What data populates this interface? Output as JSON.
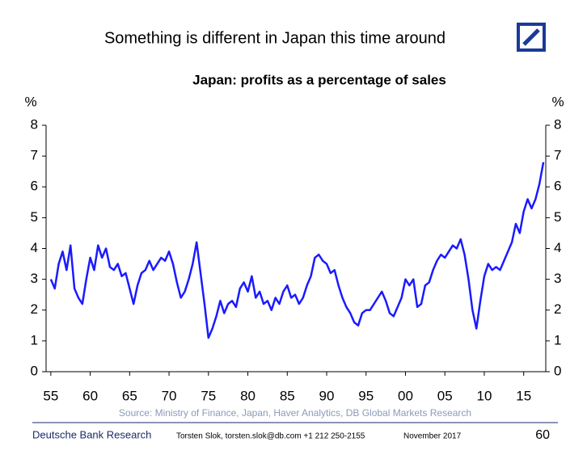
{
  "slide_title": "Something is different in Japan this time around",
  "source": "Source: Ministry of Finance, Japan,  Haver Analytics, DB Global Markets Research",
  "footer": {
    "brand": "Deutsche Bank Research",
    "author": "Torsten Slok, torsten.slok@db.com  +1 212 250-2155",
    "date": "November  2017",
    "page": "60"
  },
  "chart_data": {
    "type": "line",
    "title": "Japan: profits as a percentage of sales",
    "ylabel": "%",
    "y2label": "%",
    "color": "#1a1aff",
    "xlim": [
      1954.4,
      2017.8
    ],
    "xticks": [
      {
        "value": 1955,
        "label": "55"
      },
      {
        "value": 1960,
        "label": "60"
      },
      {
        "value": 1965,
        "label": "65"
      },
      {
        "value": 1970,
        "label": "70"
      },
      {
        "value": 1975,
        "label": "75"
      },
      {
        "value": 1980,
        "label": "80"
      },
      {
        "value": 1985,
        "label": "85"
      },
      {
        "value": 1990,
        "label": "90"
      },
      {
        "value": 1995,
        "label": "95"
      },
      {
        "value": 2000,
        "label": "00"
      },
      {
        "value": 2005,
        "label": "05"
      },
      {
        "value": 2010,
        "label": "10"
      },
      {
        "value": 2015,
        "label": "15"
      }
    ],
    "ylim": [
      0,
      8
    ],
    "yticks": [
      0,
      1,
      2,
      3,
      4,
      5,
      6,
      7,
      8
    ],
    "y2lim": [
      0,
      8
    ],
    "y2ticks": [
      0,
      1,
      2,
      3,
      4,
      5,
      6,
      7,
      8
    ],
    "x": [
      1955,
      1955.5,
      1956,
      1956.5,
      1957,
      1957.5,
      1958,
      1958.5,
      1959,
      1959.5,
      1960,
      1960.5,
      1961,
      1961.5,
      1962,
      1962.5,
      1963,
      1963.5,
      1964,
      1964.5,
      1965,
      1965.5,
      1966,
      1966.5,
      1967,
      1967.5,
      1968,
      1968.5,
      1969,
      1969.5,
      1970,
      1970.5,
      1971,
      1971.5,
      1972,
      1972.5,
      1973,
      1973.5,
      1974,
      1974.5,
      1975,
      1975.5,
      1976,
      1976.5,
      1977,
      1977.5,
      1978,
      1978.5,
      1979,
      1979.5,
      1980,
      1980.5,
      1981,
      1981.5,
      1982,
      1982.5,
      1983,
      1983.5,
      1984,
      1984.5,
      1985,
      1985.5,
      1986,
      1986.5,
      1987,
      1987.5,
      1988,
      1988.5,
      1989,
      1989.5,
      1990,
      1990.5,
      1991,
      1991.5,
      1992,
      1992.5,
      1993,
      1993.5,
      1994,
      1994.5,
      1995,
      1995.5,
      1996,
      1996.5,
      1997,
      1997.5,
      1998,
      1998.5,
      1999,
      1999.5,
      2000,
      2000.5,
      2001,
      2001.5,
      2002,
      2002.5,
      2003,
      2003.5,
      2004,
      2004.5,
      2005,
      2005.5,
      2006,
      2006.5,
      2007,
      2007.5,
      2008,
      2008.5,
      2009,
      2009.5,
      2010,
      2010.5,
      2011,
      2011.5,
      2012,
      2012.5,
      2013,
      2013.5,
      2014,
      2014.5,
      2015,
      2015.5,
      2016,
      2016.5,
      2017,
      2017.5
    ],
    "values": [
      3.0,
      2.7,
      3.5,
      3.9,
      3.3,
      4.1,
      2.7,
      2.4,
      2.2,
      3.0,
      3.7,
      3.3,
      4.1,
      3.7,
      4.0,
      3.4,
      3.3,
      3.5,
      3.1,
      3.2,
      2.7,
      2.2,
      2.8,
      3.2,
      3.3,
      3.6,
      3.3,
      3.5,
      3.7,
      3.6,
      3.9,
      3.5,
      2.9,
      2.4,
      2.6,
      3.0,
      3.5,
      4.2,
      3.2,
      2.2,
      1.1,
      1.4,
      1.8,
      2.3,
      1.9,
      2.2,
      2.3,
      2.1,
      2.7,
      2.9,
      2.6,
      3.1,
      2.4,
      2.6,
      2.2,
      2.3,
      2.0,
      2.4,
      2.2,
      2.6,
      2.8,
      2.4,
      2.5,
      2.2,
      2.4,
      2.8,
      3.1,
      3.7,
      3.8,
      3.6,
      3.5,
      3.2,
      3.3,
      2.8,
      2.4,
      2.1,
      1.9,
      1.6,
      1.5,
      1.9,
      2.0,
      2.0,
      2.2,
      2.4,
      2.6,
      2.3,
      1.9,
      1.8,
      2.1,
      2.4,
      3.0,
      2.8,
      3.0,
      2.1,
      2.2,
      2.8,
      2.9,
      3.3,
      3.6,
      3.8,
      3.7,
      3.9,
      4.1,
      4.0,
      4.3,
      3.8,
      3.0,
      2.0,
      1.4,
      2.3,
      3.1,
      3.5,
      3.3,
      3.4,
      3.3,
      3.6,
      3.9,
      4.2,
      4.8,
      4.5,
      5.2,
      5.6,
      5.3,
      5.6,
      6.1,
      6.8
    ]
  }
}
